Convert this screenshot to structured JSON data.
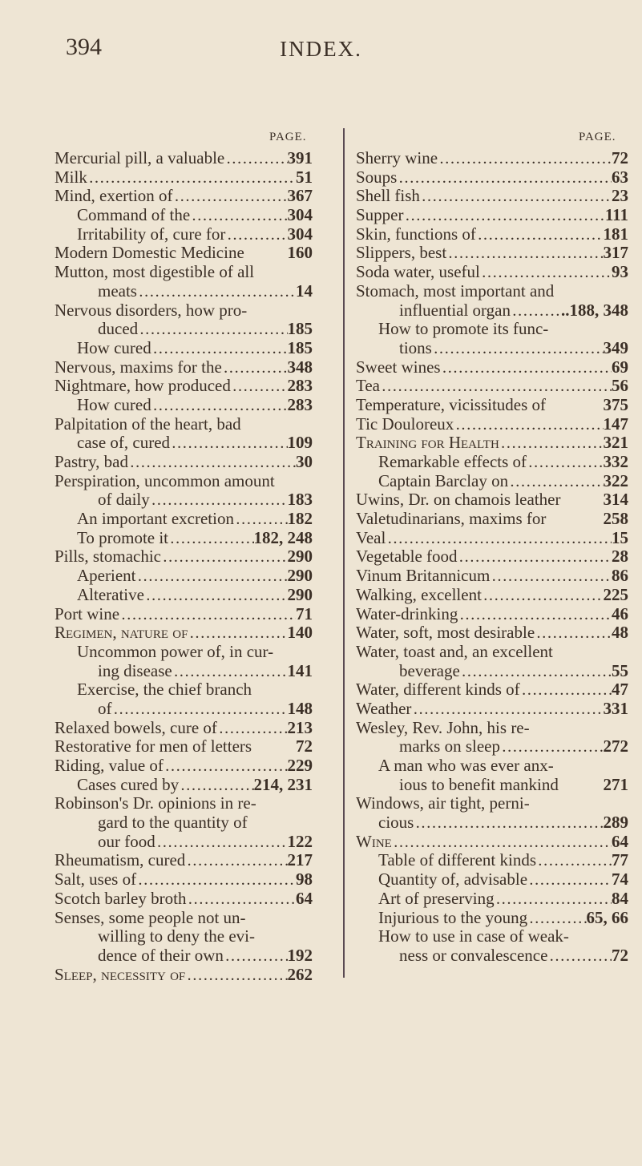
{
  "header": {
    "page_number": "394",
    "title": "INDEX."
  },
  "columns": [
    {
      "page_label": "PAGE.",
      "entries": [
        {
          "text": "Mercurial pill, a valuable",
          "pages": "391",
          "level": 0
        },
        {
          "text": "Milk",
          "pages": "51",
          "level": 0
        },
        {
          "text": "Mind, exertion of",
          "pages": "367",
          "level": 0
        },
        {
          "text": "Command of the",
          "pages": "304",
          "level": 1
        },
        {
          "text": "Irritability of, cure for",
          "pages": "304",
          "level": 1
        },
        {
          "text": "Modern Domestic Medicine",
          "pages": "160",
          "level": 0,
          "leader": false
        },
        {
          "text": "Mutton, most digestible of all",
          "pages": "",
          "level": 0
        },
        {
          "text": "meats",
          "pages": "14",
          "level": 2
        },
        {
          "text": "Nervous disorders, how pro-",
          "pages": "",
          "level": 0
        },
        {
          "text": "duced",
          "pages": "185",
          "level": 2
        },
        {
          "text": "How cured",
          "pages": "185",
          "level": 1
        },
        {
          "text": "Nervous, maxims for the",
          "pages": "348",
          "level": 0
        },
        {
          "text": "Nightmare, how produced",
          "pages": "283",
          "level": 0
        },
        {
          "text": "How cured",
          "pages": "283",
          "level": 1
        },
        {
          "text": "Palpitation of the heart, bad",
          "pages": "",
          "level": 0
        },
        {
          "text": "case of, cured",
          "pages": "109",
          "level": 1
        },
        {
          "text": "Pastry, bad",
          "pages": "30",
          "level": 0
        },
        {
          "text": "Perspiration, uncommon amount",
          "pages": "",
          "level": 0
        },
        {
          "text": "of daily",
          "pages": "183",
          "level": 2
        },
        {
          "text": "An important excretion",
          "pages": "182",
          "level": 1
        },
        {
          "text": "To promote it",
          "pages": "182, 248",
          "level": 1
        },
        {
          "text": "Pills, stomachic",
          "pages": "290",
          "level": 0
        },
        {
          "text": "Aperient",
          "pages": "290",
          "level": 1
        },
        {
          "text": "Alterative",
          "pages": "290",
          "level": 1
        },
        {
          "text": "Port wine",
          "pages": "71",
          "level": 0
        },
        {
          "text": "Regimen, nature of",
          "pages": "140",
          "level": 0,
          "smallcaps": true
        },
        {
          "text": "Uncommon power of, in cur-",
          "pages": "",
          "level": 1
        },
        {
          "text": "ing disease",
          "pages": "141",
          "level": 2
        },
        {
          "text": "Exercise, the chief branch",
          "pages": "",
          "level": 1
        },
        {
          "text": "of",
          "pages": "148",
          "level": 2
        },
        {
          "text": "Relaxed bowels, cure of",
          "pages": "213",
          "level": 0
        },
        {
          "text": "Restorative for men of letters",
          "pages": "72",
          "level": 0,
          "leader": false
        },
        {
          "text": "Riding, value of",
          "pages": "229",
          "level": 0
        },
        {
          "text": "Cases cured by",
          "pages": "214, 231",
          "level": 1
        },
        {
          "text": "Robinson's Dr. opinions in re-",
          "pages": "",
          "level": 0
        },
        {
          "text": "gard to the quantity of",
          "pages": "",
          "level": 2
        },
        {
          "text": "our food",
          "pages": "122",
          "level": 2
        },
        {
          "text": "Rheumatism, cured",
          "pages": "217",
          "level": 0
        },
        {
          "text": "Salt, uses of",
          "pages": "98",
          "level": 0
        },
        {
          "text": "Scotch barley broth",
          "pages": "64",
          "level": 0
        },
        {
          "text": "Senses, some people not un-",
          "pages": "",
          "level": 0
        },
        {
          "text": "willing to deny the evi-",
          "pages": "",
          "level": 2
        },
        {
          "text": "dence of their own",
          "pages": "192",
          "level": 2
        },
        {
          "text": "Sleep, necessity of",
          "pages": "262",
          "level": 0,
          "smallcaps": true
        }
      ]
    },
    {
      "page_label": "PAGE.",
      "entries": [
        {
          "text": "Sherry wine",
          "pages": "72",
          "level": 0
        },
        {
          "text": "Soups",
          "pages": "63",
          "level": 0
        },
        {
          "text": "Shell fish",
          "pages": "23",
          "level": 0
        },
        {
          "text": "Supper",
          "pages": "111",
          "level": 0
        },
        {
          "text": "Skin, functions of",
          "pages": "181",
          "level": 0
        },
        {
          "text": "Slippers, best",
          "pages": "317",
          "level": 0
        },
        {
          "text": "Soda water, useful",
          "pages": "93",
          "level": 0
        },
        {
          "text": "Stomach, most important and",
          "pages": "",
          "level": 0
        },
        {
          "text": "influential organ",
          "pages": "..188, 348",
          "level": 2
        },
        {
          "text": "How to promote its func-",
          "pages": "",
          "level": 1
        },
        {
          "text": "tions",
          "pages": "349",
          "level": 2
        },
        {
          "text": "Sweet wines",
          "pages": "69",
          "level": 0
        },
        {
          "text": "Tea",
          "pages": "56",
          "level": 0
        },
        {
          "text": "Temperature, vicissitudes of",
          "pages": "375",
          "level": 0,
          "leader": false
        },
        {
          "text": "Tic Douloreux",
          "pages": "147",
          "level": 0
        },
        {
          "text": "Training for Health",
          "pages": "321",
          "level": 0,
          "smallcaps": true
        },
        {
          "text": "Remarkable effects of",
          "pages": "332",
          "level": 1
        },
        {
          "text": "Captain Barclay on",
          "pages": "322",
          "level": 1
        },
        {
          "text": "Uwins, Dr. on chamois leather",
          "pages": "314",
          "level": 0,
          "leader": false
        },
        {
          "text": "Valetudinarians, maxims for",
          "pages": "258",
          "level": 0,
          "leader": false
        },
        {
          "text": "Veal",
          "pages": "15",
          "level": 0
        },
        {
          "text": "Vegetable food",
          "pages": "28",
          "level": 0
        },
        {
          "text": "Vinum Britannicum",
          "pages": "86",
          "level": 0
        },
        {
          "text": "Walking, excellent",
          "pages": "225",
          "level": 0
        },
        {
          "text": "Water-drinking",
          "pages": "46",
          "level": 0
        },
        {
          "text": "Water, soft, most desirable",
          "pages": "48",
          "level": 0
        },
        {
          "text": "Water, toast and, an excellent",
          "pages": "",
          "level": 0
        },
        {
          "text": "beverage",
          "pages": "55",
          "level": 2
        },
        {
          "text": "Water, different kinds of",
          "pages": "47",
          "level": 0
        },
        {
          "text": "Weather",
          "pages": "331",
          "level": 0
        },
        {
          "text": "Wesley, Rev. John, his re-",
          "pages": "",
          "level": 0
        },
        {
          "text": "marks on sleep",
          "pages": "272",
          "level": 2
        },
        {
          "text": "A man who was ever anx-",
          "pages": "",
          "level": 1
        },
        {
          "text": "ious to benefit mankind",
          "pages": "271",
          "level": 2,
          "leader": false
        },
        {
          "text": "Windows, air tight, perni-",
          "pages": "",
          "level": 0
        },
        {
          "text": "cious",
          "pages": "289",
          "level": 1
        },
        {
          "text": "Wine",
          "pages": "64",
          "level": 0,
          "smallcaps": true
        },
        {
          "text": "Table of different kinds",
          "pages": "77",
          "level": 1
        },
        {
          "text": "Quantity of, advisable",
          "pages": "74",
          "level": 1
        },
        {
          "text": "Art of preserving",
          "pages": "84",
          "level": 1
        },
        {
          "text": "Injurious to the young",
          "pages": "65, 66",
          "level": 1
        },
        {
          "text": "How to use in case of weak-",
          "pages": "",
          "level": 1
        },
        {
          "text": "ness or convalescence",
          "pages": "72",
          "level": 2
        }
      ]
    }
  ]
}
